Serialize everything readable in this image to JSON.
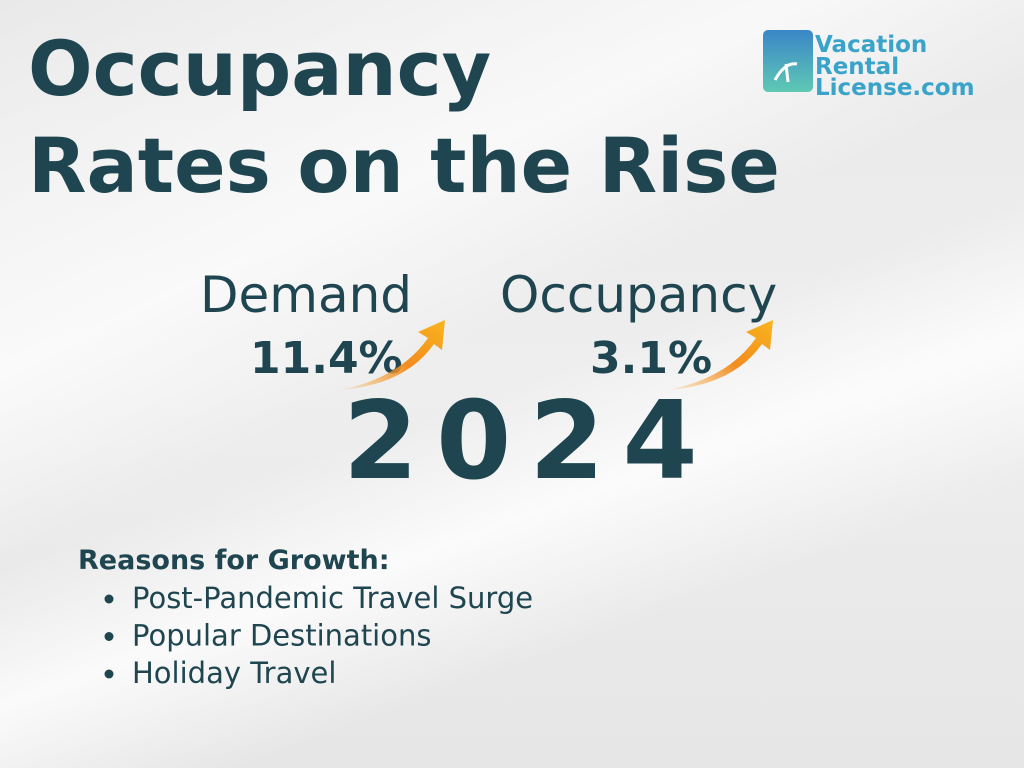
{
  "header": {
    "title_lines": [
      "Occupancy",
      "Rates on the Rise"
    ]
  },
  "logo": {
    "lines": [
      "Vacation",
      "Rental",
      "License.com"
    ]
  },
  "stats": [
    {
      "label": "Demand",
      "value": "11.4%"
    },
    {
      "label": "Occupancy",
      "value": "3.1%"
    }
  ],
  "year": "2024",
  "reasons": {
    "heading": "Reasons for Growth:",
    "items": [
      "Post-Pandemic Travel Surge",
      "Popular Destinations",
      "Holiday Travel"
    ]
  }
}
